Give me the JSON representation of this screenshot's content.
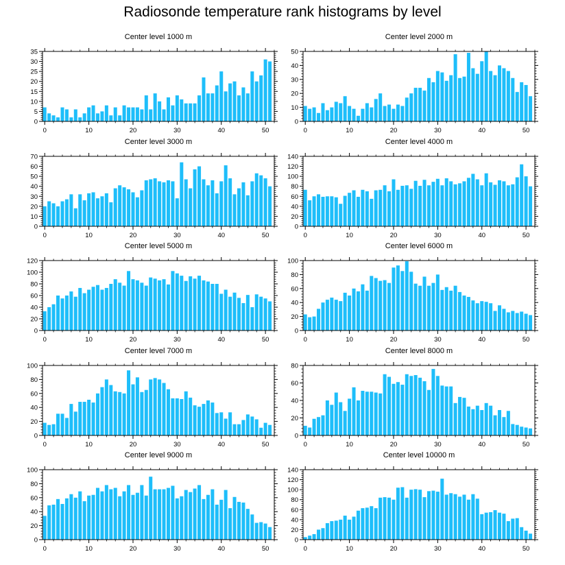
{
  "title": "Radiosonde temperature rank histograms by level",
  "colors": {
    "bar": "#1ebefa",
    "axis": "#000000",
    "background": "#ffffff"
  },
  "chart_data": [
    {
      "type": "bar",
      "title": "Center level 1000 m",
      "xlim": [
        -0.5,
        52
      ],
      "xticks": [
        0,
        10,
        20,
        30,
        40,
        50
      ],
      "ylim": [
        0,
        35
      ],
      "yticks": [
        0,
        5,
        10,
        15,
        20,
        25,
        30,
        35
      ],
      "values": [
        7,
        4,
        3,
        2,
        7,
        6,
        2,
        6,
        2,
        4,
        7,
        8,
        4,
        5,
        8,
        3,
        7,
        3,
        8,
        7,
        7,
        7,
        6,
        13,
        6,
        14,
        10,
        6,
        12,
        8,
        13,
        11,
        9,
        9,
        9,
        13,
        22,
        14,
        14,
        18,
        25,
        15,
        19,
        20,
        13,
        17,
        14,
        25,
        20,
        23,
        31,
        30
      ]
    },
    {
      "type": "bar",
      "title": "Center level 2000 m",
      "xlim": [
        -0.5,
        52
      ],
      "xticks": [
        0,
        10,
        20,
        30,
        40,
        50
      ],
      "ylim": [
        0,
        50
      ],
      "yticks": [
        0,
        10,
        20,
        30,
        40,
        50
      ],
      "values": [
        11,
        9,
        10,
        6,
        13,
        8,
        10,
        14,
        13,
        18,
        11,
        9,
        4,
        9,
        13,
        10,
        16,
        20,
        11,
        12,
        9,
        12,
        11,
        17,
        20,
        24,
        24,
        22,
        31,
        28,
        36,
        35,
        29,
        33,
        48,
        31,
        32,
        49,
        38,
        34,
        43,
        50,
        36,
        33,
        40,
        38,
        36,
        31,
        21,
        28,
        26,
        18
      ]
    },
    {
      "type": "bar",
      "title": "Center level 3000 m",
      "xlim": [
        -0.5,
        52
      ],
      "xticks": [
        0,
        10,
        20,
        30,
        40,
        50
      ],
      "ylim": [
        0,
        70
      ],
      "yticks": [
        0,
        10,
        20,
        30,
        40,
        50,
        60,
        70
      ],
      "values": [
        20,
        25,
        23,
        20,
        25,
        27,
        32,
        18,
        32,
        26,
        33,
        34,
        28,
        30,
        33,
        24,
        38,
        41,
        39,
        37,
        34,
        29,
        36,
        46,
        47,
        48,
        45,
        44,
        46,
        45,
        28,
        64,
        47,
        38,
        57,
        60,
        47,
        41,
        46,
        33,
        45,
        61,
        48,
        32,
        38,
        44,
        31,
        45,
        53,
        51,
        48,
        40
      ]
    },
    {
      "type": "bar",
      "title": "Center level 4000 m",
      "xlim": [
        -0.5,
        52
      ],
      "xticks": [
        0,
        10,
        20,
        30,
        40,
        50
      ],
      "ylim": [
        0,
        140
      ],
      "yticks": [
        0,
        20,
        40,
        60,
        80,
        100,
        120,
        140
      ],
      "values": [
        73,
        52,
        60,
        64,
        59,
        60,
        60,
        58,
        45,
        61,
        67,
        72,
        59,
        73,
        70,
        55,
        72,
        73,
        82,
        70,
        94,
        73,
        81,
        82,
        75,
        91,
        81,
        93,
        82,
        89,
        95,
        82,
        96,
        90,
        84,
        86,
        90,
        97,
        105,
        94,
        82,
        106,
        88,
        83,
        92,
        90,
        82,
        84,
        98,
        124,
        100,
        80
      ]
    },
    {
      "type": "bar",
      "title": "Center level 5000 m",
      "xlim": [
        -0.5,
        52
      ],
      "xticks": [
        0,
        10,
        20,
        30,
        40,
        50
      ],
      "ylim": [
        0,
        120
      ],
      "yticks": [
        0,
        20,
        40,
        60,
        80,
        100,
        120
      ],
      "values": [
        33,
        40,
        45,
        60,
        55,
        60,
        67,
        58,
        73,
        64,
        70,
        75,
        78,
        70,
        73,
        80,
        88,
        82,
        77,
        102,
        88,
        86,
        82,
        77,
        91,
        89,
        86,
        88,
        79,
        102,
        98,
        94,
        85,
        93,
        89,
        94,
        86,
        84,
        80,
        80,
        63,
        70,
        58,
        65,
        56,
        47,
        61,
        40,
        62,
        58,
        55,
        50
      ]
    },
    {
      "type": "bar",
      "title": "Center level 6000 m",
      "xlim": [
        -0.5,
        52
      ],
      "xticks": [
        0,
        10,
        20,
        30,
        40,
        50
      ],
      "ylim": [
        0,
        100
      ],
      "yticks": [
        0,
        20,
        40,
        60,
        80,
        100
      ],
      "values": [
        23,
        19,
        20,
        31,
        40,
        44,
        47,
        44,
        42,
        54,
        50,
        60,
        56,
        66,
        57,
        78,
        75,
        71,
        72,
        68,
        90,
        93,
        85,
        99,
        84,
        67,
        64,
        77,
        64,
        68,
        80,
        58,
        62,
        57,
        64,
        55,
        50,
        48,
        43,
        39,
        42,
        41,
        39,
        28,
        36,
        31,
        26,
        28,
        25,
        27,
        24,
        22
      ]
    },
    {
      "type": "bar",
      "title": "Center level 7000 m",
      "xlim": [
        -0.5,
        52
      ],
      "xticks": [
        0,
        10,
        20,
        30,
        40,
        50
      ],
      "ylim": [
        0,
        100
      ],
      "yticks": [
        0,
        20,
        40,
        60,
        80,
        100
      ],
      "values": [
        18,
        15,
        16,
        31,
        31,
        25,
        45,
        34,
        48,
        48,
        51,
        47,
        60,
        69,
        80,
        72,
        63,
        62,
        60,
        93,
        73,
        83,
        62,
        65,
        80,
        82,
        80,
        75,
        66,
        53,
        53,
        52,
        63,
        54,
        43,
        41,
        45,
        50,
        47,
        32,
        33,
        24,
        33,
        16,
        16,
        22,
        30,
        27,
        23,
        11,
        18,
        15
      ]
    },
    {
      "type": "bar",
      "title": "Center level 8000 m",
      "xlim": [
        -0.5,
        52
      ],
      "xticks": [
        0,
        10,
        20,
        30,
        40,
        50
      ],
      "ylim": [
        0,
        80
      ],
      "yticks": [
        0,
        20,
        40,
        60,
        80
      ],
      "values": [
        11,
        9,
        19,
        21,
        23,
        40,
        35,
        49,
        38,
        28,
        42,
        55,
        40,
        51,
        50,
        50,
        49,
        48,
        70,
        67,
        59,
        61,
        58,
        70,
        68,
        69,
        66,
        62,
        52,
        76,
        68,
        57,
        56,
        56,
        37,
        44,
        43,
        33,
        30,
        34,
        29,
        37,
        34,
        23,
        29,
        21,
        28,
        13,
        12,
        10,
        9,
        8
      ]
    },
    {
      "type": "bar",
      "title": "Center level 9000 m",
      "xlim": [
        -0.5,
        52
      ],
      "xticks": [
        0,
        10,
        20,
        30,
        40,
        50
      ],
      "ylim": [
        0,
        100
      ],
      "yticks": [
        0,
        20,
        40,
        60,
        80,
        100
      ],
      "values": [
        34,
        49,
        50,
        58,
        51,
        59,
        65,
        60,
        69,
        55,
        63,
        64,
        74,
        69,
        78,
        72,
        74,
        62,
        69,
        78,
        64,
        67,
        78,
        63,
        90,
        72,
        72,
        72,
        74,
        77,
        59,
        62,
        71,
        68,
        73,
        78,
        58,
        64,
        72,
        50,
        57,
        71,
        45,
        61,
        54,
        53,
        44,
        36,
        24,
        25,
        23,
        18
      ]
    },
    {
      "type": "bar",
      "title": "Center level 10000 m",
      "xlim": [
        -0.5,
        52
      ],
      "xticks": [
        0,
        10,
        20,
        30,
        40,
        50
      ],
      "ylim": [
        0,
        140
      ],
      "yticks": [
        0,
        20,
        40,
        60,
        80,
        100,
        120,
        140
      ],
      "values": [
        5,
        8,
        11,
        20,
        23,
        33,
        37,
        38,
        40,
        48,
        40,
        46,
        58,
        63,
        64,
        67,
        63,
        84,
        85,
        84,
        80,
        104,
        105,
        84,
        100,
        101,
        100,
        85,
        97,
        98,
        96,
        122,
        90,
        93,
        91,
        86,
        90,
        80,
        91,
        82,
        51,
        54,
        55,
        59,
        54,
        52,
        37,
        42,
        43,
        25,
        18,
        12
      ]
    }
  ]
}
